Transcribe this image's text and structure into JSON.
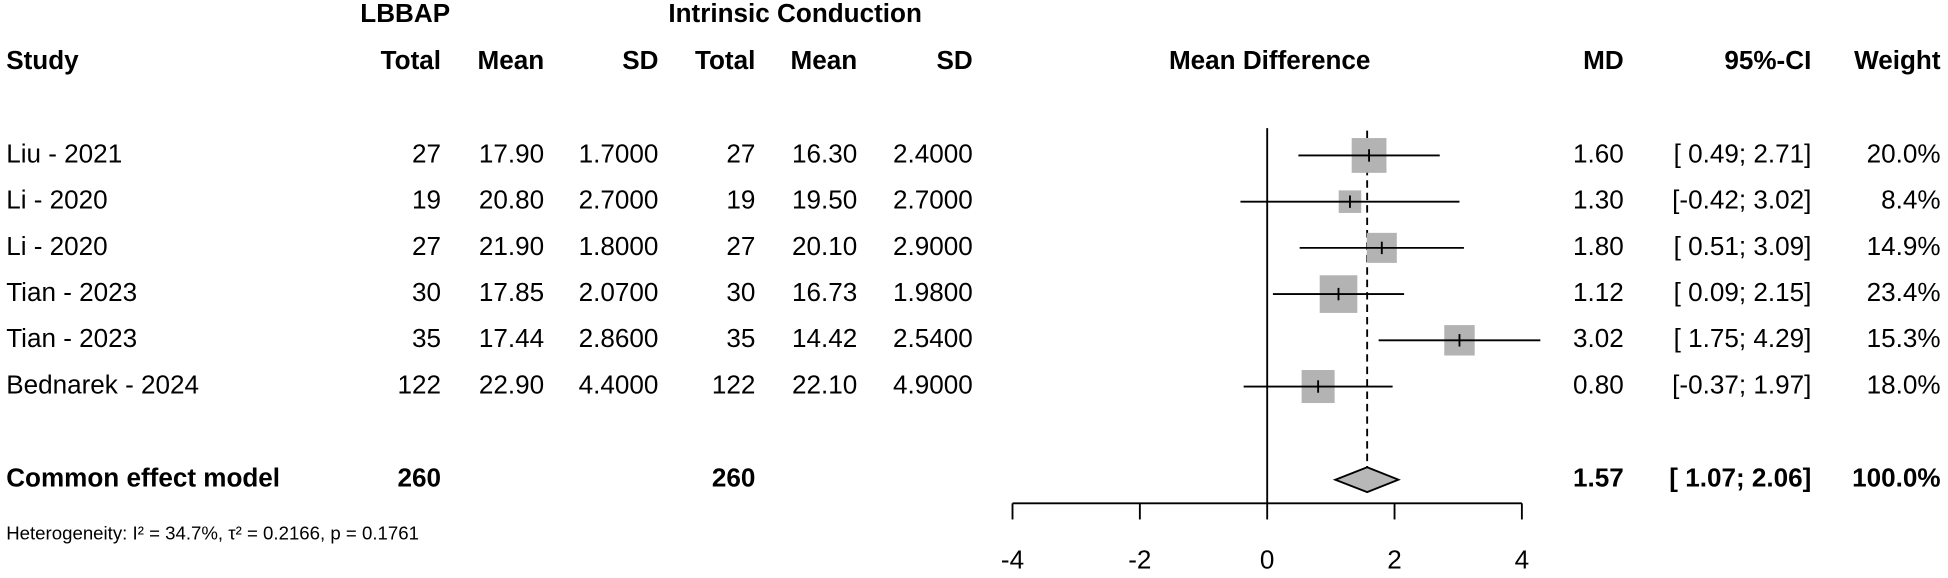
{
  "table": {
    "group_headers": [
      "LBBAP",
      "Intrinsic Conduction"
    ],
    "columns": [
      "Study",
      "Total",
      "Mean",
      "SD",
      "Total",
      "Mean",
      "SD"
    ],
    "rows": [
      [
        "Liu - 2021",
        "27",
        "17.90",
        "1.7000",
        "27",
        "16.30",
        "2.4000"
      ],
      [
        "Li - 2020",
        "19",
        "20.80",
        "2.7000",
        "19",
        "19.50",
        "2.7000"
      ],
      [
        "Li - 2020",
        "27",
        "21.90",
        "1.8000",
        "27",
        "20.10",
        "2.9000"
      ],
      [
        "Tian - 2023",
        "30",
        "17.85",
        "2.0700",
        "30",
        "16.73",
        "1.9800"
      ],
      [
        "Tian - 2023",
        "35",
        "17.44",
        "2.8600",
        "35",
        "14.42",
        "2.5400"
      ],
      [
        "Bednarek - 2024",
        "122",
        "22.90",
        "4.4000",
        "122",
        "22.10",
        "4.9000"
      ]
    ],
    "pooled": [
      "Common effect model",
      "260",
      "260"
    ],
    "heterogeneity": "Heterogeneity: I² = 34.7%, τ² = 0.2166, p = 0.1761"
  },
  "chart_data": {
    "type": "forest",
    "title": "Mean Difference",
    "columns": [
      "MD",
      "95%-CI",
      "Weight"
    ],
    "md": [
      1.6,
      1.3,
      1.8,
      1.12,
      3.02,
      0.8
    ],
    "md_labels": [
      "1.60",
      "1.30",
      "1.80",
      "1.12",
      "3.02",
      "0.80"
    ],
    "ci_lower": [
      0.49,
      -0.42,
      0.51,
      0.09,
      1.75,
      -0.37
    ],
    "ci_upper": [
      2.71,
      3.02,
      3.09,
      2.15,
      4.29,
      1.97
    ],
    "ci_labels": [
      "[ 0.49; 2.71]",
      "[-0.42; 3.02]",
      "[ 0.51; 3.09]",
      "[ 0.09; 2.15]",
      "[ 1.75; 4.29]",
      "[-0.37; 1.97]"
    ],
    "weight": [
      20.0,
      8.4,
      14.9,
      23.4,
      15.3,
      18.0
    ],
    "weight_labels": [
      "20.0%",
      "8.4%",
      "14.9%",
      "23.4%",
      "15.3%",
      "18.0%"
    ],
    "pooled": {
      "md": 1.57,
      "md_label": "1.57",
      "ci_lower": 1.07,
      "ci_upper": 2.06,
      "ci_label": "[ 1.07; 2.06]",
      "weight": 100.0,
      "weight_label": "100.0%"
    },
    "xlim": [
      -4,
      4
    ],
    "xticks": [
      -4,
      -2,
      0,
      2,
      4
    ],
    "square_color": "#b3b3b3",
    "diamond_color": "#b8b8b8"
  }
}
